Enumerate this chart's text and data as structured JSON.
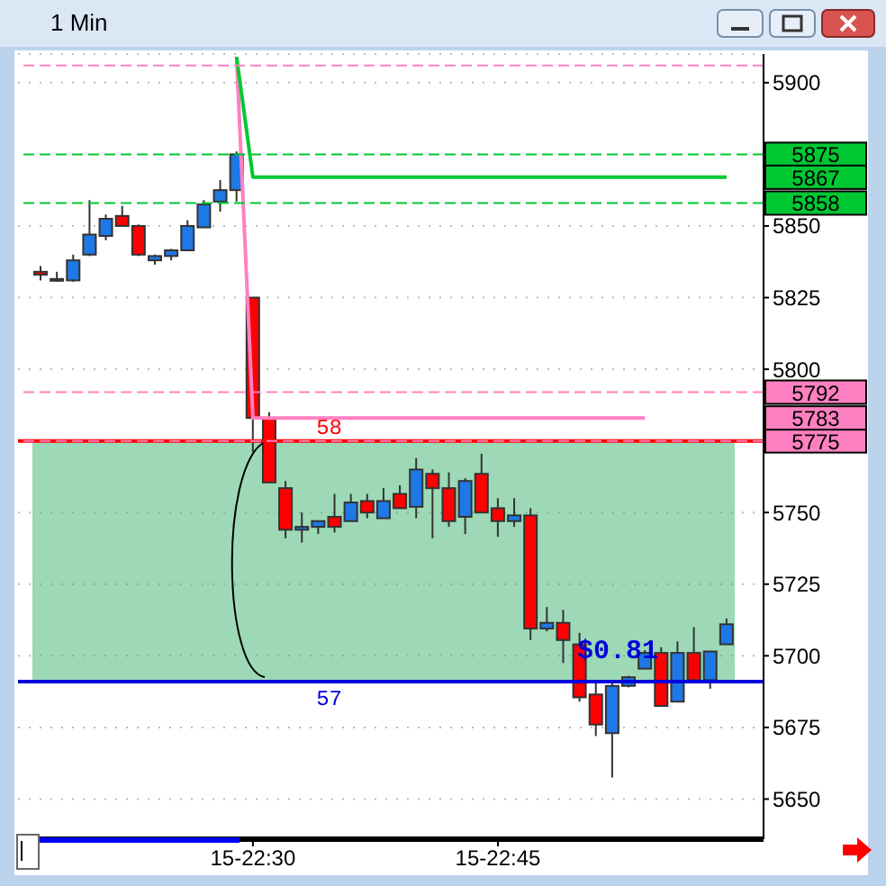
{
  "chart_data": {
    "type": "candlestick",
    "title": "1 Min",
    "categories": [
      null,
      null,
      null,
      null,
      null,
      null,
      null,
      null,
      null,
      null,
      null,
      null,
      null,
      "15-22:30",
      null,
      null,
      null,
      null,
      null,
      null,
      null,
      null,
      null,
      null,
      null,
      null,
      null,
      null,
      "15-22:45",
      null,
      null,
      null,
      null,
      null,
      null,
      null,
      null,
      null,
      null,
      null,
      null,
      null,
      null
    ],
    "ohlc": [
      [
        5834,
        5836,
        5831,
        5833
      ],
      [
        5831.5,
        5834,
        5830.5,
        5831.5
      ],
      [
        5831,
        5840,
        5830.5,
        5838
      ],
      [
        5840,
        5859,
        5839.5,
        5847
      ],
      [
        5846.5,
        5854,
        5845,
        5852.5
      ],
      [
        5853.5,
        5857,
        5850,
        5850
      ],
      [
        5850,
        5850.5,
        5839.5,
        5840
      ],
      [
        5838,
        5840,
        5836.5,
        5839.5
      ],
      [
        5839.5,
        5842,
        5838,
        5841.5
      ],
      [
        5841.5,
        5852,
        5841.5,
        5850
      ],
      [
        5849.5,
        5859,
        5849.5,
        5857.5
      ],
      [
        5858.5,
        5866,
        5855,
        5862.5
      ],
      [
        5862.5,
        5876,
        5858.5,
        5875
      ],
      [
        5825,
        5825,
        5771,
        5783
      ],
      [
        5783,
        5785,
        5760.5,
        5760.5
      ],
      [
        5758.5,
        5761,
        5741,
        5744
      ],
      [
        5744,
        5750,
        5739.5,
        5745
      ],
      [
        5745,
        5747,
        5742.5,
        5747
      ],
      [
        5748.5,
        5756.5,
        5743,
        5745
      ],
      [
        5747,
        5756.5,
        5747,
        5753.5
      ],
      [
        5754,
        5756.5,
        5748,
        5750
      ],
      [
        5748,
        5758.5,
        5748,
        5754
      ],
      [
        5756.5,
        5759.5,
        5751.5,
        5751.5
      ],
      [
        5752,
        5769,
        5748,
        5765
      ],
      [
        5763.5,
        5765,
        5741,
        5758.5
      ],
      [
        5758.5,
        5764,
        5745,
        5747
      ],
      [
        5748.5,
        5762,
        5742.5,
        5761
      ],
      [
        5763.5,
        5770.5,
        5750,
        5750
      ],
      [
        5751.5,
        5755,
        5741.5,
        5747
      ],
      [
        5747,
        5755,
        5745,
        5749
      ],
      [
        5749,
        5751.5,
        5705.5,
        5709.5
      ],
      [
        5709.5,
        5717,
        5708.5,
        5711.5
      ],
      [
        5711.5,
        5716,
        5697.5,
        5705.5
      ],
      [
        5704,
        5708,
        5684,
        5685.5
      ],
      [
        5686.5,
        5691,
        5672,
        5676
      ],
      [
        5673,
        5691,
        5657.5,
        5689.5
      ],
      [
        5689.5,
        5693,
        5689,
        5692.5
      ],
      [
        5695.5,
        5702,
        5695.5,
        5701
      ],
      [
        5701,
        5703,
        5682.5,
        5682.5
      ],
      [
        5684,
        5705,
        5684,
        5701
      ],
      [
        5701,
        5710,
        5691.5,
        5691.5
      ],
      [
        5691.5,
        5701.5,
        5688.5,
        5701.5
      ],
      [
        5704,
        5713,
        5704,
        5711
      ]
    ],
    "colors": [
      "#ff0000",
      "#1e78e6",
      "#1e78e6",
      "#1e78e6",
      "#1e78e6",
      "#ff0000",
      "#ff0000",
      "#1e78e6",
      "#1e78e6",
      "#1e78e6",
      "#1e78e6",
      "#1e78e6",
      "#1e78e6",
      "#ff0000",
      "#ff0000",
      "#ff0000",
      "#1e78e6",
      "#1e78e6",
      "#ff0000",
      "#1e78e6",
      "#ff0000",
      "#1e78e6",
      "#ff0000",
      "#1e78e6",
      "#ff0000",
      "#ff0000",
      "#1e78e6",
      "#ff0000",
      "#ff0000",
      "#1e78e6",
      "#ff0000",
      "#1e78e6",
      "#ff0000",
      "#ff0000",
      "#ff0000",
      "#1e78e6",
      "#1e78e6",
      "#1e78e6",
      "#ff0000",
      "#1e78e6",
      "#ff0000",
      "#1e78e6",
      "#1e78e6"
    ],
    "series": [
      {
        "type": "line",
        "name": "5783",
        "color": "#ff80c0",
        "values": [
          null,
          null,
          null,
          null,
          null,
          null,
          null,
          null,
          null,
          null,
          null,
          null,
          5909,
          5783,
          5783,
          5783,
          5783,
          5783,
          5783,
          5783,
          5783,
          5783,
          5783,
          5783,
          5783,
          5783,
          5783,
          5783,
          5783,
          5783,
          5783,
          5783,
          5783,
          5783,
          5783,
          5783,
          5783,
          5783,
          null,
          null,
          null,
          null,
          null
        ]
      },
      {
        "type": "line",
        "name": "5867",
        "color": "#00c832",
        "values": [
          null,
          null,
          null,
          null,
          null,
          null,
          null,
          null,
          null,
          null,
          null,
          null,
          5909,
          5867,
          5867,
          5867,
          5867,
          5867,
          5867,
          5867,
          5867,
          5867,
          5867,
          5867,
          5867,
          5867,
          5867,
          5867,
          5867,
          5867,
          5867,
          5867,
          5867,
          5867,
          5867,
          5867,
          5867,
          5867,
          5867,
          5867,
          5867,
          5867,
          5867
        ]
      }
    ],
    "ylim": [
      5636,
      5910
    ],
    "yticks": [
      5650,
      5675,
      5700,
      5725,
      5750,
      5800,
      5825,
      5850,
      5900
    ],
    "grid": "y",
    "legend": "right",
    "ref_lines": [
      {
        "axis": "y",
        "value": 5775,
        "color": "#ff0000",
        "line_style": "solid"
      },
      {
        "axis": "y",
        "value": 5691,
        "color": "#0000dd",
        "line_style": "solid"
      },
      {
        "axis": "y",
        "value": 5906,
        "color": "#ff80c0",
        "line_style": "dashed"
      },
      {
        "axis": "y",
        "value": 5875,
        "color": "#00c832",
        "line_style": "dashed",
        "label": "5875"
      },
      {
        "axis": "y",
        "value": 5858,
        "color": "#00c832",
        "line_style": "dashed",
        "label": "5858"
      },
      {
        "axis": "y",
        "value": 5792,
        "color": "#ff80c0",
        "line_style": "dashed",
        "label": "5792"
      },
      {
        "axis": "y",
        "value": 5775,
        "color": "#ff80c0",
        "line_style": "dashed",
        "label": "5775"
      }
    ],
    "bands": [
      {
        "axis": "y",
        "from": 5691,
        "to": 5775,
        "color": "#3cb46e"
      }
    ],
    "annotations": [
      {
        "text": "58",
        "y": 5775
      },
      {
        "text": "57",
        "y": 5691
      },
      {
        "text": "$0.81",
        "y": 5691
      }
    ]
  }
}
